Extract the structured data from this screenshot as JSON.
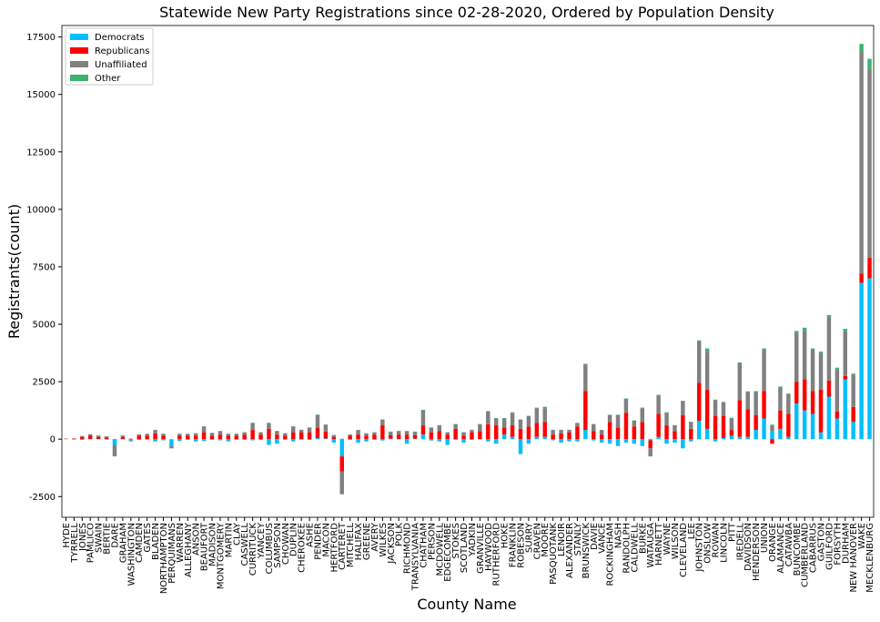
{
  "chart_data": {
    "type": "stacked_bar",
    "title": "Statewide New Party Registrations since 02-28-2020, Ordered by Population Density",
    "x_label": "County Name",
    "y_label": "Registrants(count)",
    "categories": [
      "HYDE",
      "TYRRELL",
      "JONES",
      "PAMLICO",
      "SWAIN",
      "BERTIE",
      "DARE",
      "GRAHAM",
      "WASHINGTON",
      "CAMDEN",
      "GATES",
      "BLADEN",
      "NORTHAMPTON",
      "PERQUIMANS",
      "WARREN",
      "ALLEGHANY",
      "ANSON",
      "BEAUFORT",
      "MADISON",
      "MONTGOMERY",
      "MARTIN",
      "CLAY",
      "CASWELL",
      "CURRITUCK",
      "YANCEY",
      "COLUMBUS",
      "SAMPSON",
      "CHOWAN",
      "DUPLIN",
      "CHEROKEE",
      "ASHE",
      "PENDER",
      "MACON",
      "HERTFORD",
      "CARTERET",
      "MITCHELL",
      "HALIFAX",
      "GREENE",
      "AVERY",
      "WILKES",
      "JACKSON",
      "POLK",
      "RICHMOND",
      "TRANSYLVANIA",
      "CHATHAM",
      "PERSON",
      "MCDOWELL",
      "EDGECOMBE",
      "STOKES",
      "SCOTLAND",
      "YADKIN",
      "GRANVILLE",
      "HAYWOOD",
      "RUTHERFORD",
      "HOKE",
      "FRANKLIN",
      "ROBESON",
      "SURRY",
      "CRAVEN",
      "MOORE",
      "PASQUOTANK",
      "LENOIR",
      "ALEXANDER",
      "STANLY",
      "BRUNSWICK",
      "DAVIE",
      "VANCE",
      "ROCKINGHAM",
      "NASH",
      "RANDOLPH",
      "CALDWELL",
      "BURKE",
      "WATAUGA",
      "HARNETT",
      "WAYNE",
      "WILSON",
      "CLEVELAND",
      "LEE",
      "JOHNSTON",
      "ONSLOW",
      "ROWAN",
      "LINCOLN",
      "PITT",
      "IREDELL",
      "DAVIDSON",
      "HENDERSON",
      "UNION",
      "ORANGE",
      "ALAMANCE",
      "CATAWBA",
      "BUNCOMBE",
      "CUMBERLAND",
      "CABARRUS",
      "GASTON",
      "GUILFORD",
      "FORSYTH",
      "DURHAM",
      "NEW HANOVER",
      "WAKE",
      "MECKLENBURG"
    ],
    "series": [
      {
        "name": "Democrats",
        "color": "#00bfff",
        "values": [
          0,
          -20,
          -30,
          0,
          0,
          -20,
          -250,
          0,
          -60,
          -30,
          -20,
          -100,
          -50,
          -300,
          -80,
          -30,
          -100,
          -80,
          -30,
          -50,
          -100,
          -30,
          -30,
          -50,
          -30,
          -250,
          -200,
          -30,
          -100,
          -20,
          -30,
          50,
          30,
          -150,
          -750,
          -30,
          -150,
          -100,
          -30,
          -60,
          20,
          0,
          -200,
          20,
          200,
          -60,
          -100,
          -250,
          -30,
          -150,
          -30,
          0,
          -100,
          -200,
          200,
          100,
          -650,
          -200,
          100,
          100,
          -50,
          -150,
          -100,
          -100,
          400,
          -60,
          -150,
          -200,
          -300,
          -150,
          -200,
          -300,
          -50,
          100,
          -200,
          -150,
          -400,
          -100,
          800,
          450,
          -100,
          50,
          150,
          100,
          100,
          400,
          900,
          350,
          450,
          100,
          1550,
          1250,
          1100,
          300,
          1850,
          900,
          2600,
          750,
          6800,
          7000
        ]
      },
      {
        "name": "Republicans",
        "color": "#ff0000",
        "values": [
          20,
          30,
          100,
          150,
          100,
          80,
          0,
          100,
          20,
          150,
          150,
          250,
          150,
          0,
          150,
          150,
          150,
          300,
          150,
          200,
          150,
          150,
          200,
          400,
          200,
          450,
          200,
          150,
          300,
          300,
          300,
          450,
          300,
          100,
          -650,
          150,
          200,
          150,
          200,
          600,
          150,
          200,
          200,
          150,
          400,
          300,
          350,
          200,
          450,
          150,
          300,
          350,
          650,
          600,
          300,
          500,
          450,
          550,
          600,
          650,
          200,
          250,
          300,
          550,
          1700,
          350,
          200,
          750,
          500,
          1150,
          550,
          750,
          -350,
          1000,
          600,
          350,
          1050,
          450,
          1650,
          1700,
          1000,
          950,
          250,
          1600,
          1200,
          650,
          1200,
          -200,
          800,
          1000,
          950,
          1350,
          1000,
          1850,
          700,
          300,
          150,
          650,
          400,
          900
        ]
      },
      {
        "name": "Unaffiliated",
        "color": "#808080",
        "values": [
          10,
          0,
          40,
          60,
          60,
          40,
          -500,
          60,
          -40,
          60,
          80,
          150,
          80,
          -100,
          80,
          80,
          100,
          250,
          120,
          150,
          80,
          80,
          100,
          300,
          100,
          250,
          150,
          100,
          250,
          100,
          200,
          550,
          300,
          80,
          -1000,
          50,
          200,
          100,
          100,
          250,
          150,
          150,
          150,
          150,
          650,
          200,
          250,
          100,
          200,
          150,
          100,
          300,
          550,
          300,
          400,
          550,
          400,
          450,
          650,
          600,
          200,
          150,
          100,
          150,
          1150,
          300,
          200,
          300,
          550,
          600,
          250,
          600,
          -350,
          800,
          550,
          250,
          600,
          300,
          1800,
          1650,
          700,
          600,
          500,
          1600,
          750,
          1000,
          1800,
          250,
          1000,
          850,
          2150,
          2100,
          1800,
          1600,
          2750,
          1850,
          1950,
          1400,
          9650,
          8200
        ]
      },
      {
        "name": "Other",
        "color": "#3cb371",
        "values": [
          0,
          0,
          0,
          5,
          5,
          0,
          10,
          0,
          0,
          5,
          5,
          5,
          5,
          0,
          5,
          5,
          5,
          10,
          5,
          5,
          5,
          5,
          5,
          10,
          5,
          10,
          10,
          5,
          10,
          10,
          10,
          20,
          10,
          0,
          20,
          5,
          5,
          5,
          5,
          10,
          10,
          10,
          5,
          10,
          30,
          10,
          10,
          5,
          10,
          5,
          10,
          10,
          20,
          15,
          15,
          20,
          10,
          15,
          20,
          60,
          10,
          10,
          10,
          10,
          30,
          10,
          5,
          15,
          15,
          20,
          15,
          20,
          10,
          30,
          20,
          10,
          20,
          10,
          50,
          150,
          20,
          20,
          30,
          40,
          30,
          40,
          50,
          30,
          40,
          30,
          60,
          150,
          50,
          60,
          100,
          60,
          100,
          50,
          350,
          450
        ]
      }
    ],
    "ylim": [
      -3400,
      18000
    ],
    "yticks": [
      -2500,
      0,
      2500,
      5000,
      7500,
      10000,
      12500,
      15000,
      17500
    ],
    "legend": "upper left"
  }
}
